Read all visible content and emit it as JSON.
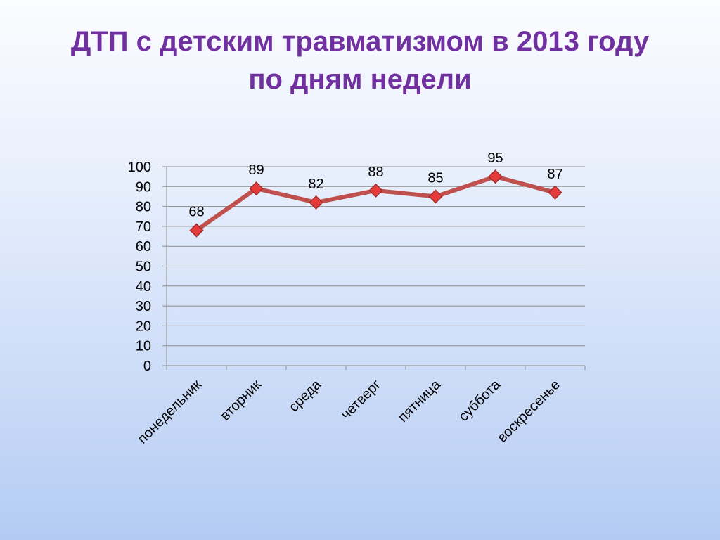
{
  "slide": {
    "title_line1": "ДТП с детским травматизмом в 2013 году",
    "title_line2": "по дням недели"
  },
  "chart_data": {
    "type": "line",
    "categories": [
      "понедельник",
      "вторник",
      "среда",
      "четверг",
      "пятница",
      "суббота",
      "воскресенье"
    ],
    "series": [
      {
        "values": [
          68,
          89,
          82,
          88,
          85,
          95,
          87
        ],
        "color": "#c0504d"
      }
    ],
    "ylim": [
      0,
      100
    ],
    "yticks": [
      0,
      10,
      20,
      30,
      40,
      50,
      60,
      70,
      80,
      90,
      100
    ],
    "grid": true,
    "data_labels": true,
    "legend": "none",
    "title": "",
    "xlabel": "",
    "ylabel": ""
  }
}
